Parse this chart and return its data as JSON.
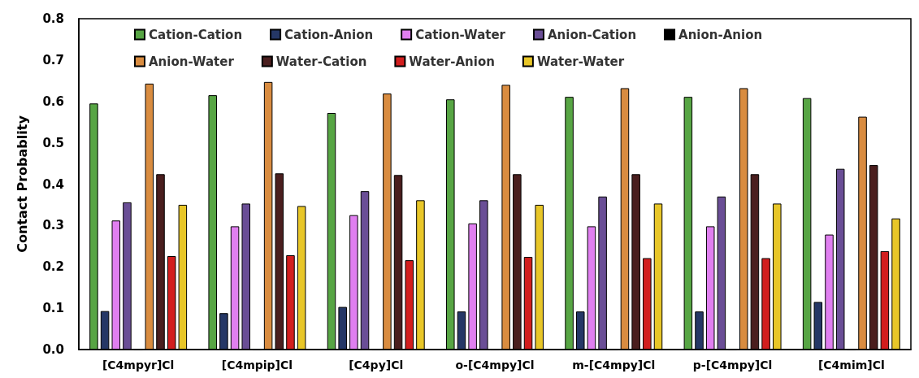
{
  "chart_data": {
    "type": "bar",
    "ylabel": "Contact Probablity",
    "categories": [
      "[C4mpyr]Cl",
      "[C4mpip]Cl",
      "[C4py]Cl",
      "o-[C4mpy]Cl",
      "m-[C4mpy]Cl",
      "p-[C4mpy]Cl",
      "[C4mim]Cl"
    ],
    "series": [
      {
        "name": "Cation-Cation",
        "color": "#57a544",
        "values": [
          0.595,
          0.615,
          0.572,
          0.605,
          0.611,
          0.611,
          0.608
        ]
      },
      {
        "name": "Cation-Anion",
        "color": "#253766",
        "values": [
          0.093,
          0.088,
          0.103,
          0.092,
          0.092,
          0.092,
          0.115
        ]
      },
      {
        "name": "Cation-Water",
        "color": "#e07ff0",
        "values": [
          0.312,
          0.298,
          0.325,
          0.305,
          0.298,
          0.298,
          0.278
        ]
      },
      {
        "name": "Anion-Cation",
        "color": "#6a4e96",
        "values": [
          0.356,
          0.353,
          0.383,
          0.361,
          0.37,
          0.37,
          0.437
        ]
      },
      {
        "name": "Anion-Anion",
        "color": "#000000",
        "values": [
          0,
          0,
          0,
          0,
          0,
          0,
          0
        ]
      },
      {
        "name": "Anion-Water",
        "color": "#d98c40",
        "values": [
          0.643,
          0.647,
          0.619,
          0.64,
          0.632,
          0.632,
          0.563
        ]
      },
      {
        "name": "Water-Cation",
        "color": "#4a1e1e",
        "values": [
          0.424,
          0.426,
          0.422,
          0.424,
          0.424,
          0.424,
          0.446
        ]
      },
      {
        "name": "Water-Anion",
        "color": "#d21e1e",
        "values": [
          0.226,
          0.228,
          0.216,
          0.224,
          0.221,
          0.221,
          0.238
        ]
      },
      {
        "name": "Water-Water",
        "color": "#e8c628",
        "values": [
          0.35,
          0.347,
          0.361,
          0.35,
          0.353,
          0.353,
          0.317
        ]
      }
    ],
    "ylim": [
      0,
      0.8
    ],
    "yticks": [
      {
        "value": 0,
        "label": "0.0"
      },
      0.1,
      0.2,
      0.3,
      0.4,
      0.5,
      0.6,
      0.7,
      0.8
    ],
    "grid": false,
    "legend": "top"
  }
}
